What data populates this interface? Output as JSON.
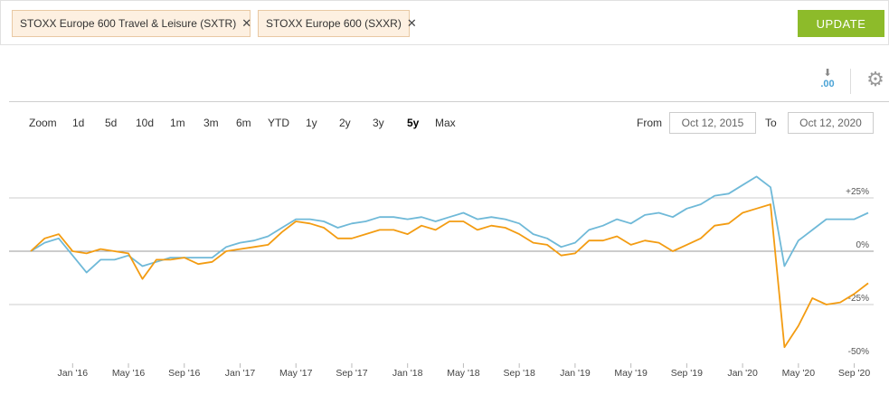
{
  "filters": {
    "chip1_label": "STOXX Europe 600 Travel & Leisure (SXTR)",
    "chip2_label": "STOXX Europe 600 (SXXR)",
    "remove_glyph": "✕"
  },
  "toolbar": {
    "update_label": "UPDATE",
    "download_text": ".00",
    "download_arrow": "⬇",
    "settings_glyph": "⚙"
  },
  "range": {
    "zoom_label": "Zoom",
    "buttons": [
      "1d",
      "5d",
      "10d",
      "1m",
      "3m",
      "6m",
      "YTD",
      "1y",
      "2y",
      "3y",
      "5y",
      "Max"
    ],
    "active": "5y",
    "from_label": "From",
    "from_value": "Oct 12, 2015",
    "to_label": "To",
    "to_value": "Oct 12, 2020"
  },
  "colors": {
    "series_sxtr": "#f39c12",
    "series_sxxr": "#6fb9d8",
    "update_button": "#8dbb2a"
  },
  "chart_data": {
    "type": "line",
    "ylim": [
      -50,
      25
    ],
    "y_ticks": [
      "+25%",
      "0%",
      "-25%",
      "-50%"
    ],
    "x_ticks": [
      "Jan '16",
      "May '16",
      "Sep '16",
      "Jan '17",
      "May '17",
      "Sep '17",
      "Jan '18",
      "May '18",
      "Sep '18",
      "Jan '19",
      "May '19",
      "Sep '19",
      "Jan '20",
      "May '20",
      "Sep '20"
    ],
    "x": [
      "Oct '15",
      "Nov '15",
      "Dec '15",
      "Jan '16",
      "Feb '16",
      "Mar '16",
      "Apr '16",
      "May '16",
      "Jun '16",
      "Jul '16",
      "Aug '16",
      "Sep '16",
      "Oct '16",
      "Nov '16",
      "Dec '16",
      "Jan '17",
      "Feb '17",
      "Mar '17",
      "Apr '17",
      "May '17",
      "Jun '17",
      "Jul '17",
      "Aug '17",
      "Sep '17",
      "Oct '17",
      "Nov '17",
      "Dec '17",
      "Jan '18",
      "Feb '18",
      "Mar '18",
      "Apr '18",
      "May '18",
      "Jun '18",
      "Jul '18",
      "Aug '18",
      "Sep '18",
      "Oct '18",
      "Nov '18",
      "Dec '18",
      "Jan '19",
      "Feb '19",
      "Mar '19",
      "Apr '19",
      "May '19",
      "Jun '19",
      "Jul '19",
      "Aug '19",
      "Sep '19",
      "Oct '19",
      "Nov '19",
      "Dec '19",
      "Jan '20",
      "Feb '20",
      "Mar '20",
      "Apr '20",
      "May '20",
      "Jun '20",
      "Jul '20",
      "Aug '20",
      "Sep '20",
      "Oct '20"
    ],
    "series": [
      {
        "name": "STOXX Europe 600 Travel & Leisure (SXTR)",
        "color": "#f39c12",
        "values": [
          0,
          6,
          8,
          0,
          -1,
          1,
          0,
          -1,
          -13,
          -4,
          -4,
          -3,
          -6,
          -5,
          0,
          1,
          2,
          3,
          9,
          14,
          13,
          11,
          6,
          6,
          8,
          10,
          10,
          8,
          12,
          10,
          14,
          14,
          10,
          12,
          11,
          8,
          4,
          3,
          -2,
          -1,
          5,
          5,
          7,
          3,
          5,
          4,
          0,
          3,
          6,
          12,
          13,
          18,
          20,
          22,
          -45,
          -35,
          -22,
          -25,
          -24,
          -20,
          -15
        ]
      },
      {
        "name": "STOXX Europe 600 (SXXR)",
        "color": "#6fb9d8",
        "values": [
          0,
          4,
          6,
          -2,
          -10,
          -4,
          -4,
          -2,
          -7,
          -5,
          -3,
          -3,
          -3,
          -3,
          2,
          4,
          5,
          7,
          11,
          15,
          15,
          14,
          11,
          13,
          14,
          16,
          16,
          15,
          16,
          14,
          16,
          18,
          15,
          16,
          15,
          13,
          8,
          6,
          2,
          4,
          10,
          12,
          15,
          13,
          17,
          18,
          16,
          20,
          22,
          26,
          27,
          31,
          35,
          30,
          -7,
          5,
          10,
          15,
          15,
          15,
          18
        ]
      }
    ]
  }
}
